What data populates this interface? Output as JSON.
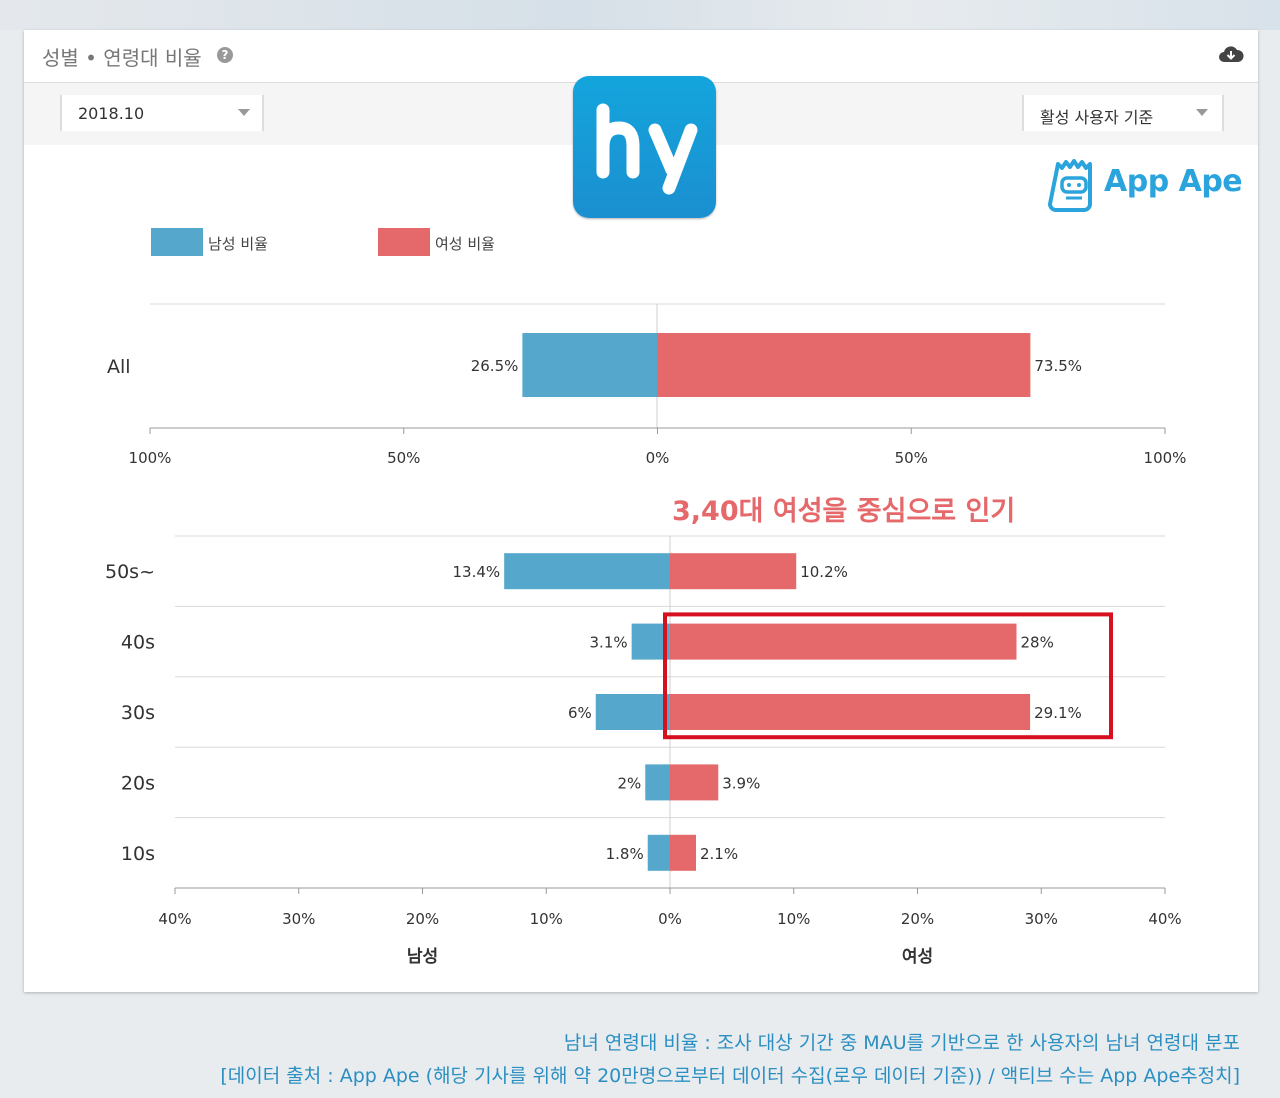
{
  "panel": {
    "title": "성별 • 연령대 비율",
    "help_glyph": "?",
    "date_value": "2018.10",
    "basis_value": "활성 사용자 기준"
  },
  "brand": {
    "app_ape": "App Ape"
  },
  "legend": {
    "male": "남성 비율",
    "female": "여성 비율"
  },
  "colors": {
    "male": "#55a8cc",
    "female": "#e5686b",
    "highlight": "#d7101f",
    "annotation": "#e5686b"
  },
  "chart_data": [
    {
      "type": "bar",
      "orientation": "horizontal-diverging",
      "categories": [
        "All"
      ],
      "series": [
        {
          "name": "남성 비율",
          "values": [
            26.5
          ],
          "labels": [
            "26.5%"
          ]
        },
        {
          "name": "여성 비율",
          "values": [
            73.5
          ],
          "labels": [
            "73.5%"
          ]
        }
      ],
      "xlim": [
        -100,
        100
      ],
      "xticks": [
        "100%",
        "50%",
        "0%",
        "50%",
        "100%"
      ],
      "grid": true
    },
    {
      "type": "bar",
      "orientation": "horizontal-diverging",
      "categories": [
        "50s~",
        "40s",
        "30s",
        "20s",
        "10s"
      ],
      "series": [
        {
          "name": "남성 비율",
          "values": [
            13.4,
            3.1,
            6,
            2,
            1.8
          ],
          "labels": [
            "13.4%",
            "3.1%",
            "6%",
            "2%",
            "1.8%"
          ]
        },
        {
          "name": "여성 비율",
          "values": [
            10.2,
            28,
            29.1,
            3.9,
            2.1
          ],
          "labels": [
            "10.2%",
            "28%",
            "29.1%",
            "3.9%",
            "2.1%"
          ]
        }
      ],
      "xlim": [
        -40,
        40
      ],
      "xticks": [
        "40%",
        "30%",
        "20%",
        "10%",
        "0%",
        "10%",
        "20%",
        "30%",
        "40%"
      ],
      "xlabel_left": "남성",
      "xlabel_right": "여성",
      "annotation": "3,40대 여성을 중심으로 인기",
      "highlighted_categories": [
        "40s",
        "30s"
      ],
      "grid": true
    }
  ],
  "footer": {
    "line1": "남녀 연령대 비율 : 조사 대상 기간 중 MAU를 기반으로 한 사용자의 남녀 연령대 분포",
    "line2": "[데이터 출처 : App Ape (해당 기사를 위해 약 20만명으로부터 데이터 수집(로우 데이터 기준)) / 액티브 수는 App Ape추정치]"
  }
}
